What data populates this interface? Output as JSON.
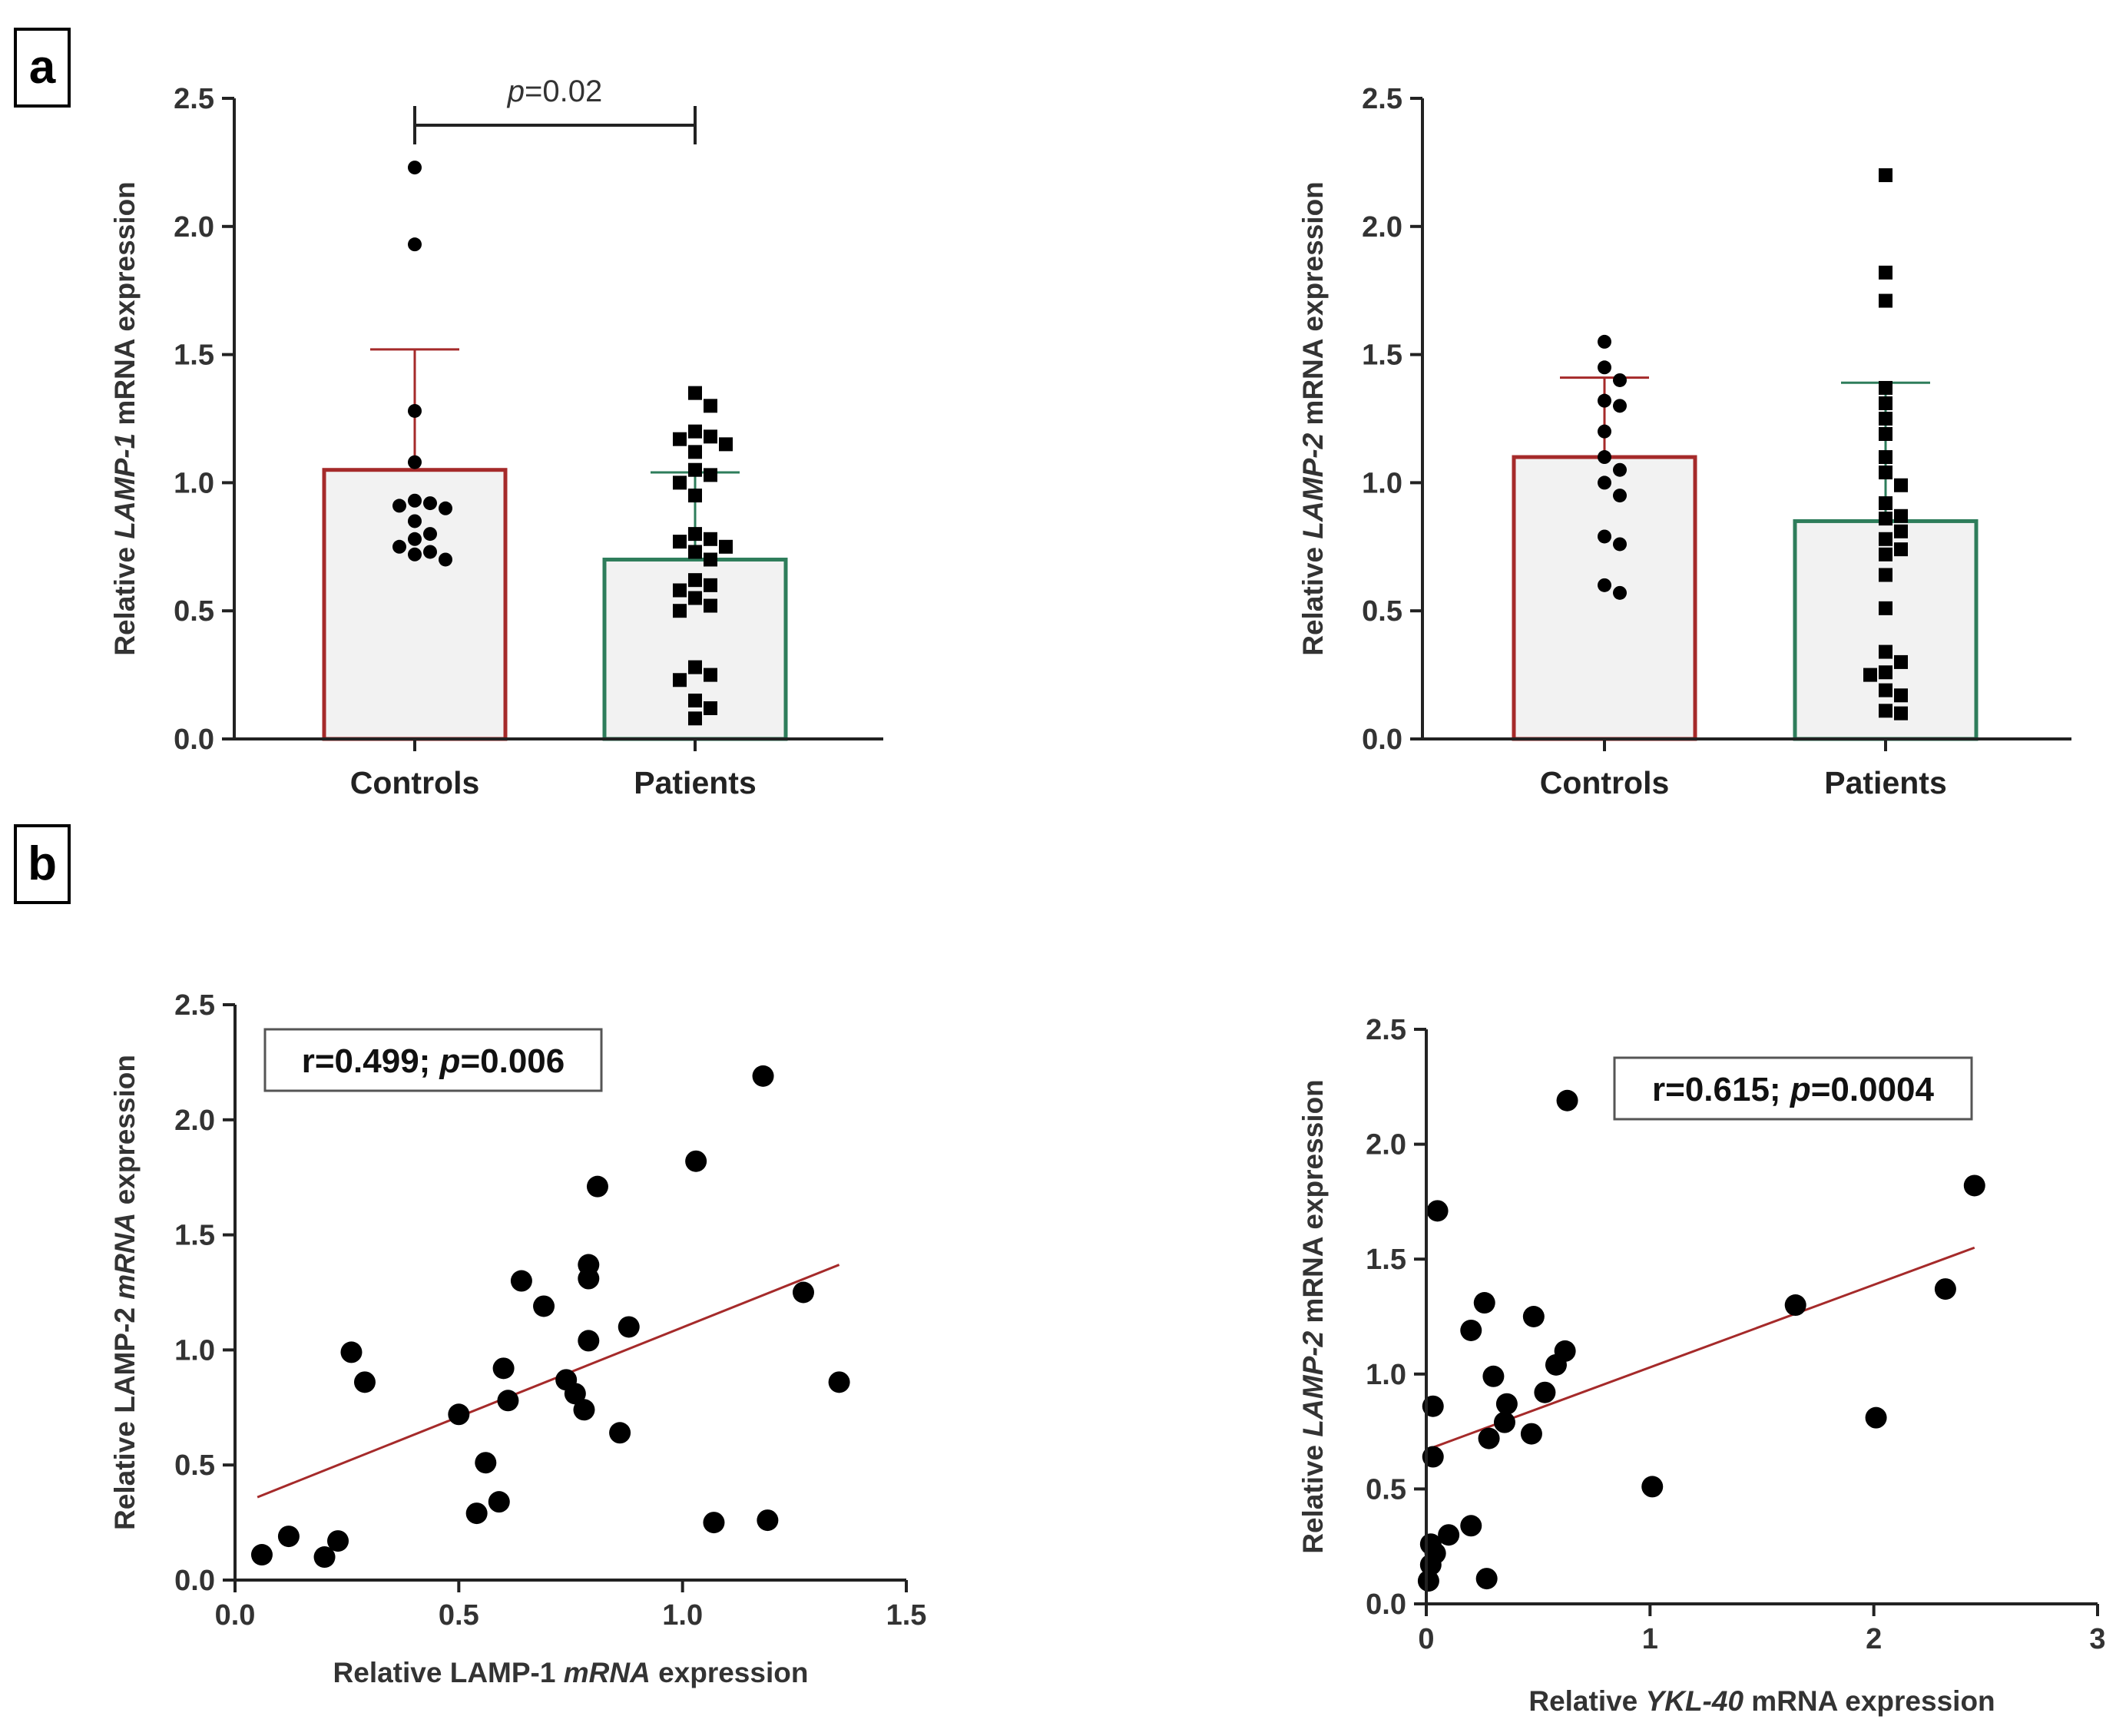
{
  "panels": {
    "a": "a",
    "b": "b"
  },
  "chart_data": [
    {
      "id": "lamp1-bar",
      "type": "bar",
      "categories": [
        "Controls",
        "Patients"
      ],
      "values": [
        1.05,
        0.7
      ],
      "errors": [
        0.47,
        0.34
      ],
      "ylim": [
        0,
        2.5
      ],
      "yticks": [
        "0.0",
        "0.5",
        "1.0",
        "1.5",
        "2.0",
        "2.5"
      ],
      "ylabel": {
        "before": "Relative ",
        "italic": "LAMP-1",
        "after": " mRNA expression"
      },
      "significance": {
        "italic": "p",
        "text": "=0.02"
      },
      "points": {
        "Controls": [
          2.23,
          1.93,
          1.28,
          1.08,
          0.93,
          0.92,
          0.91,
          0.9,
          0.85,
          0.8,
          0.78,
          0.75,
          0.73,
          0.72,
          0.7
        ],
        "Patients": [
          1.35,
          1.3,
          1.2,
          1.18,
          1.17,
          1.15,
          1.12,
          1.05,
          1.03,
          1.0,
          0.95,
          0.8,
          0.78,
          0.77,
          0.75,
          0.73,
          0.7,
          0.62,
          0.6,
          0.58,
          0.55,
          0.52,
          0.5,
          0.28,
          0.25,
          0.23,
          0.15,
          0.12,
          0.08
        ]
      },
      "colors": {
        "Controls": "#a52a2a",
        "Patients": "#2e7d5b"
      }
    },
    {
      "id": "lamp2-bar",
      "type": "bar",
      "categories": [
        "Controls",
        "Patients"
      ],
      "values": [
        1.1,
        0.85
      ],
      "errors": [
        0.31,
        0.54
      ],
      "ylim": [
        0,
        2.5
      ],
      "yticks": [
        "0.0",
        "0.5",
        "1.0",
        "1.5",
        "2.0",
        "2.5"
      ],
      "ylabel": {
        "before": "Relative ",
        "italic": "LAMP-2",
        "after": " mRNA expression"
      },
      "points": {
        "Controls": [
          1.55,
          1.45,
          1.4,
          1.32,
          1.3,
          1.2,
          1.1,
          1.05,
          1.0,
          0.95,
          0.79,
          0.76,
          0.6,
          0.57
        ],
        "Patients": [
          2.2,
          1.82,
          1.71,
          1.37,
          1.31,
          1.25,
          1.19,
          1.1,
          1.04,
          0.99,
          0.92,
          0.87,
          0.86,
          0.81,
          0.78,
          0.74,
          0.72,
          0.64,
          0.51,
          0.34,
          0.3,
          0.26,
          0.25,
          0.19,
          0.17,
          0.11,
          0.1
        ],
        "Patients_offsets": [
          0,
          0,
          0,
          0,
          0,
          0,
          0,
          0,
          0,
          0,
          0,
          0,
          0,
          0,
          0,
          0,
          0,
          0,
          0,
          0,
          0,
          0,
          0,
          0,
          0,
          0,
          0
        ]
      },
      "colors": {
        "Controls": "#a52a2a",
        "Patients": "#2e7d5b"
      }
    },
    {
      "id": "lamp1-lamp2-scatter",
      "type": "scatter",
      "x": [
        0.06,
        0.12,
        0.2,
        0.23,
        0.26,
        0.29,
        0.5,
        0.54,
        0.56,
        0.59,
        0.6,
        0.61,
        0.64,
        0.69,
        0.74,
        0.76,
        0.78,
        0.79,
        0.79,
        0.79,
        0.81,
        0.86,
        0.88,
        1.03,
        1.07,
        1.18,
        1.19,
        1.27,
        1.35
      ],
      "y": [
        0.11,
        0.19,
        0.1,
        0.17,
        0.99,
        0.86,
        0.72,
        0.29,
        0.51,
        0.34,
        0.92,
        0.78,
        1.3,
        1.19,
        0.87,
        0.81,
        0.74,
        1.04,
        1.31,
        1.37,
        1.71,
        0.64,
        1.1,
        1.82,
        0.25,
        2.19,
        0.26,
        1.25,
        0.86
      ],
      "trend": {
        "x": [
          0.05,
          1.35
        ],
        "y": [
          0.36,
          1.37
        ],
        "color": "#a52a2a"
      },
      "xlim": [
        0,
        1.5
      ],
      "ylim": [
        0,
        2.5
      ],
      "xticks": [
        "0.0",
        "0.5",
        "1.0",
        "1.5"
      ],
      "yticks": [
        "0.0",
        "0.5",
        "1.0",
        "1.5",
        "2.0",
        "2.5"
      ],
      "xlabel": {
        "before": "Relative LAMP-1 ",
        "italic": "mRNA",
        "after": " expression"
      },
      "ylabel": {
        "before": "Relative LAMP-2 ",
        "italic": "mRNA",
        "after": " expression"
      },
      "annotation": {
        "r": "r=0.499; ",
        "italic": "p",
        "p": "=0.006"
      }
    },
    {
      "id": "ykl40-lamp2-scatter",
      "type": "scatter",
      "x": [
        0.01,
        0.02,
        0.02,
        0.03,
        0.03,
        0.04,
        0.05,
        0.1,
        0.2,
        0.2,
        0.26,
        0.27,
        0.28,
        0.3,
        0.35,
        0.36,
        0.47,
        0.48,
        0.53,
        0.58,
        0.62,
        0.63,
        1.01,
        1.65,
        2.01,
        2.32,
        2.45
      ],
      "y": [
        0.1,
        0.17,
        0.26,
        0.64,
        0.86,
        0.22,
        1.71,
        0.3,
        0.34,
        1.19,
        1.31,
        0.11,
        0.72,
        0.99,
        0.79,
        0.87,
        0.74,
        1.25,
        0.92,
        1.04,
        1.1,
        2.19,
        0.51,
        1.3,
        0.81,
        1.37,
        1.82
      ],
      "trend": {
        "x": [
          0,
          2.45
        ],
        "y": [
          0.67,
          1.55
        ],
        "color": "#a52a2a"
      },
      "xlim": [
        0,
        3
      ],
      "ylim": [
        0,
        2.5
      ],
      "xticks": [
        "0",
        "1",
        "2",
        "3"
      ],
      "yticks": [
        "0.0",
        "0.5",
        "1.0",
        "1.5",
        "2.0",
        "2.5"
      ],
      "xlabel": {
        "before": "Relative ",
        "italic": "YKL-40",
        "after": " mRNA expression"
      },
      "ylabel": {
        "before": "Relative ",
        "italic": "LAMP-2",
        "after": " mRNA expression"
      },
      "annotation": {
        "r": "r=0.615; ",
        "italic": "p",
        "p": "=0.0004"
      }
    }
  ]
}
